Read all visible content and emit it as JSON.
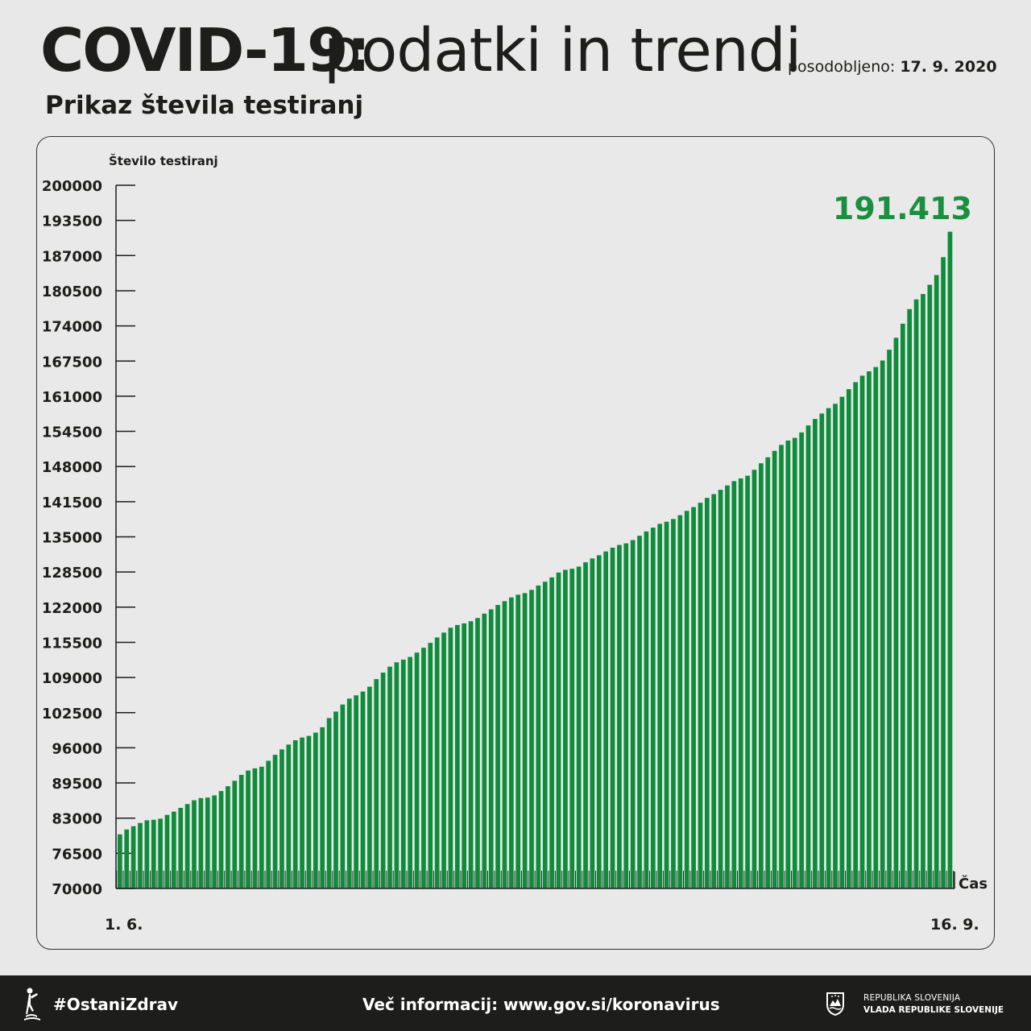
{
  "header": {
    "title_bold": "COVID-19:",
    "title_light": "podatki in trendi",
    "updated_label": "posodobljeno:",
    "updated_date": "17. 9. 2020",
    "subtitle": "Prikaz števila testiranj"
  },
  "footer": {
    "hashtag": "#OstaniZdrav",
    "more_info": "Več informacij: www.gov.si/koronavirus",
    "gov_line1": "REPUBLIKA SLOVENIJA",
    "gov_line2": "VLADA REPUBLIKE SLOVENIJE",
    "icons": [
      "person-figure-icon",
      "coat-of-arms-icon"
    ]
  },
  "colors": {
    "bar": "#0f8c3b",
    "highlight": "#1a8f3f",
    "text": "#1d1d1b",
    "background": "#e8e8e8",
    "footer": "#1d1d1b"
  },
  "chart_data": {
    "type": "bar",
    "ylabel": "Število testiranj",
    "xlabel": "Čas",
    "x_start_label": "1. 6.",
    "x_end_label": "16. 9.",
    "ylim": [
      70000,
      200000
    ],
    "yticks": [
      70000,
      76500,
      83000,
      89500,
      96000,
      102500,
      109000,
      115500,
      122000,
      128500,
      135000,
      141500,
      148000,
      154500,
      161000,
      167500,
      174000,
      180500,
      187000,
      193500,
      200000
    ],
    "highlight_label": "191.413",
    "grid": false,
    "legend": "none",
    "values": [
      80000,
      80900,
      81500,
      82100,
      82600,
      82700,
      82900,
      83600,
      84200,
      84900,
      85600,
      86300,
      86700,
      86800,
      87200,
      88000,
      88900,
      89900,
      91000,
      91800,
      92200,
      92500,
      93600,
      94700,
      95700,
      96600,
      97400,
      97900,
      98200,
      98800,
      99800,
      101500,
      102700,
      104000,
      105100,
      105700,
      106400,
      107300,
      108700,
      109900,
      111000,
      111800,
      112300,
      112800,
      113600,
      114500,
      115400,
      116400,
      117300,
      118200,
      118700,
      119000,
      119400,
      120000,
      120800,
      121600,
      122400,
      123100,
      123800,
      124300,
      124600,
      125200,
      126000,
      126700,
      127500,
      128400,
      128900,
      129100,
      129500,
      130300,
      131000,
      131600,
      132300,
      133000,
      133500,
      133800,
      134400,
      135200,
      136000,
      136700,
      137400,
      137800,
      138300,
      139000,
      139800,
      140500,
      141300,
      142200,
      142900,
      143700,
      144500,
      145300,
      145800,
      146300,
      147400,
      148600,
      149700,
      150900,
      152000,
      152800,
      153300,
      154300,
      155600,
      156800,
      157800,
      158800,
      159600,
      160900,
      162300,
      163600,
      164800,
      165600,
      166400,
      167600,
      169600,
      171800,
      174400,
      177100,
      178900,
      179900,
      181600,
      183400,
      186700,
      191413
    ]
  }
}
